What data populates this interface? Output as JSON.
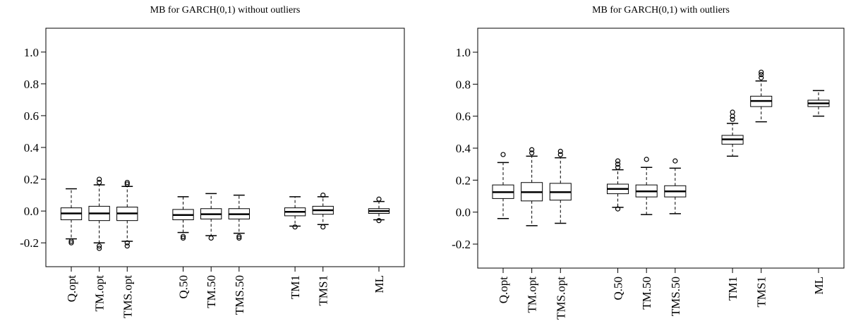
{
  "chart_data": [
    {
      "type": "box",
      "title": "MB for GARCH(0,1) without outliers",
      "categories": [
        "Q.opt",
        "TM.opt",
        "TMS.opt",
        null,
        "Q.50",
        "TM.50",
        "TMS.50",
        null,
        "TM1",
        "TMS1",
        null,
        "ML"
      ],
      "boxes": [
        {
          "whisker_low": -0.175,
          "q1": -0.055,
          "median": -0.015,
          "q3": 0.02,
          "whisker_high": 0.14,
          "outliers": [
            -0.19,
            -0.2
          ]
        },
        {
          "whisker_low": -0.2,
          "q1": -0.06,
          "median": -0.015,
          "q3": 0.03,
          "whisker_high": 0.165,
          "outliers": [
            0.18,
            0.2,
            -0.22,
            -0.235
          ]
        },
        {
          "whisker_low": -0.19,
          "q1": -0.06,
          "median": -0.015,
          "q3": 0.025,
          "whisker_high": 0.155,
          "outliers": [
            0.17,
            0.18,
            -0.2,
            -0.22
          ]
        },
        null,
        {
          "whisker_low": -0.135,
          "q1": -0.055,
          "median": -0.025,
          "q3": 0.01,
          "whisker_high": 0.09,
          "outliers": [
            -0.16,
            -0.17
          ]
        },
        {
          "whisker_low": -0.155,
          "q1": -0.05,
          "median": -0.02,
          "q3": 0.015,
          "whisker_high": 0.11,
          "outliers": [
            -0.17
          ]
        },
        {
          "whisker_low": -0.14,
          "q1": -0.05,
          "median": -0.02,
          "q3": 0.015,
          "whisker_high": 0.1,
          "outliers": [
            -0.16,
            -0.17
          ]
        },
        null,
        {
          "whisker_low": -0.095,
          "q1": -0.03,
          "median": -0.005,
          "q3": 0.02,
          "whisker_high": 0.09,
          "outliers": [
            -0.1
          ]
        },
        {
          "whisker_low": -0.085,
          "q1": -0.02,
          "median": 0.005,
          "q3": 0.03,
          "whisker_high": 0.09,
          "outliers": [
            0.1,
            -0.1
          ]
        },
        null,
        {
          "whisker_low": -0.055,
          "q1": -0.015,
          "median": 0.0,
          "q3": 0.015,
          "whisker_high": 0.06,
          "outliers": [
            0.075,
            -0.06
          ]
        }
      ],
      "ylim": [
        -0.35,
        1.15
      ],
      "yticks": [
        -0.2,
        {
          "value": 0,
          "label": "0.0"
        },
        0.2,
        0.4,
        0.6,
        0.8,
        {
          "value": 1,
          "label": "1.0"
        }
      ],
      "color": "#000000"
    },
    {
      "type": "box",
      "title": "MB for GARCH(0,1) with outliers",
      "categories": [
        "Q.opt",
        "TM.opt",
        "TMS.opt",
        null,
        "Q.50",
        "TM.50",
        "TMS.50",
        null,
        "TM1",
        "TMS1",
        null,
        "ML"
      ],
      "boxes": [
        {
          "whisker_low": -0.04,
          "q1": 0.085,
          "median": 0.125,
          "q3": 0.17,
          "whisker_high": 0.31,
          "outliers": [
            0.36
          ]
        },
        {
          "whisker_low": -0.085,
          "q1": 0.07,
          "median": 0.125,
          "q3": 0.185,
          "whisker_high": 0.35,
          "outliers": [
            0.37,
            0.39
          ]
        },
        {
          "whisker_low": -0.07,
          "q1": 0.075,
          "median": 0.125,
          "q3": 0.18,
          "whisker_high": 0.34,
          "outliers": [
            0.36,
            0.38
          ]
        },
        null,
        {
          "whisker_low": 0.03,
          "q1": 0.115,
          "median": 0.145,
          "q3": 0.175,
          "whisker_high": 0.265,
          "outliers": [
            0.28,
            0.3,
            0.32,
            0.02
          ]
        },
        {
          "whisker_low": -0.015,
          "q1": 0.095,
          "median": 0.13,
          "q3": 0.17,
          "whisker_high": 0.28,
          "outliers": [
            0.33
          ]
        },
        {
          "whisker_low": -0.01,
          "q1": 0.095,
          "median": 0.13,
          "q3": 0.165,
          "whisker_high": 0.275,
          "outliers": [
            0.32
          ]
        },
        null,
        {
          "whisker_low": 0.35,
          "q1": 0.425,
          "median": 0.455,
          "q3": 0.48,
          "whisker_high": 0.555,
          "outliers": [
            0.58,
            0.6,
            0.625
          ]
        },
        {
          "whisker_low": 0.565,
          "q1": 0.66,
          "median": 0.695,
          "q3": 0.725,
          "whisker_high": 0.82,
          "outliers": [
            0.84,
            0.86,
            0.875
          ]
        },
        null,
        {
          "whisker_low": 0.6,
          "q1": 0.66,
          "median": 0.68,
          "q3": 0.7,
          "whisker_high": 0.76,
          "outliers": []
        }
      ],
      "ylim": [
        -0.35,
        1.15
      ],
      "yticks": [
        -0.2,
        {
          "value": 0,
          "label": "0.0"
        },
        0.2,
        0.4,
        0.6,
        0.8,
        {
          "value": 1,
          "label": "1.0"
        }
      ],
      "color": "#000000"
    }
  ]
}
